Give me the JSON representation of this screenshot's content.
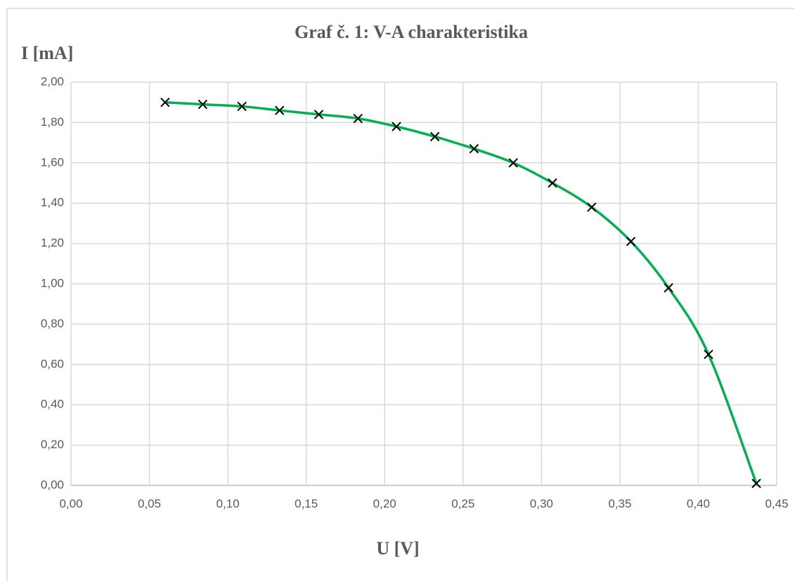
{
  "chart_data": {
    "type": "scatter",
    "title": "Graf č. 1: V-A charakteristika",
    "y_label": "I [mA]",
    "x_label": "U [V]",
    "smooth": true,
    "marker": "x",
    "grid": true,
    "series": [
      {
        "color": "#00b050",
        "marker_color": "#000000",
        "x": [
          0.06,
          0.084,
          0.109,
          0.133,
          0.158,
          0.183,
          0.2075,
          0.232,
          0.257,
          0.282,
          0.307,
          0.332,
          0.357,
          0.381,
          0.4065,
          0.437
        ],
        "values": [
          1.9,
          1.89,
          1.88,
          1.86,
          1.84,
          1.82,
          1.78,
          1.73,
          1.67,
          1.6,
          1.5,
          1.38,
          1.21,
          0.98,
          0.65,
          0.01
        ]
      }
    ],
    "xlim": [
      0,
      0.45
    ],
    "ylim": [
      0,
      2
    ],
    "xticks": [
      {
        "value": 0,
        "label": "0,00"
      },
      {
        "value": 0.05,
        "label": "0,05"
      },
      {
        "value": 0.1,
        "label": "0,10"
      },
      {
        "value": 0.15,
        "label": "0,15"
      },
      {
        "value": 0.2,
        "label": "0,20"
      },
      {
        "value": 0.25,
        "label": "0,25"
      },
      {
        "value": 0.3,
        "label": "0,30"
      },
      {
        "value": 0.35,
        "label": "0,35"
      },
      {
        "value": 0.4,
        "label": "0,40"
      },
      {
        "value": 0.45,
        "label": "0,45"
      }
    ],
    "yticks": [
      {
        "value": 0,
        "label": "0,00"
      },
      {
        "value": 0.2,
        "label": "0,20"
      },
      {
        "value": 0.4,
        "label": "0,40"
      },
      {
        "value": 0.6,
        "label": "0,60"
      },
      {
        "value": 0.8,
        "label": "0,80"
      },
      {
        "value": 1,
        "label": "1,00"
      },
      {
        "value": 1.2,
        "label": "1,20"
      },
      {
        "value": 1.4,
        "label": "1,40"
      },
      {
        "value": 1.6,
        "label": "1,60"
      },
      {
        "value": 1.8,
        "label": "1,80"
      },
      {
        "value": 2,
        "label": "2,00"
      }
    ]
  }
}
